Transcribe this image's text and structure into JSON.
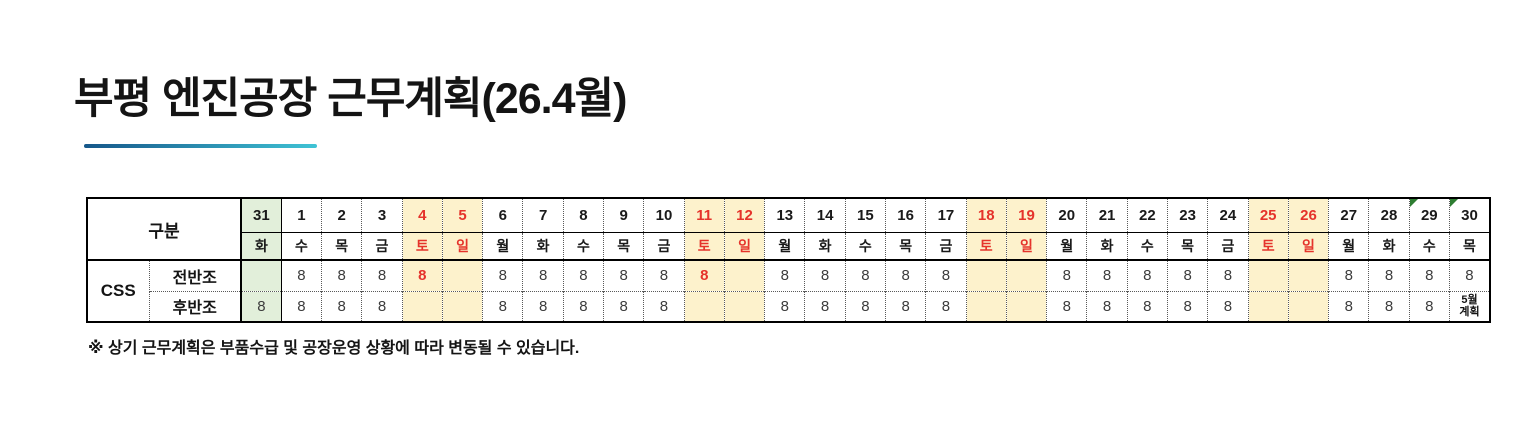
{
  "page": {
    "title": "부평 엔진공장 근무계획(26.4월)",
    "footnote": "※ 상기 근무계획은 부품수급 및 공장운영 상황에 따라 변동될 수 있습니다."
  },
  "colors": {
    "accent_gradient_start": "#16578a",
    "accent_gradient_end": "#3fc3d5",
    "green_bg": "#e2efda",
    "weekend_bg": "#fdf2cc",
    "red_text": "#e5332b",
    "flag_green": "#2e7d32"
  },
  "table": {
    "corner_label": "구분",
    "group_label": "CSS",
    "columns": [
      {
        "date": "31",
        "day": "화",
        "green": true
      },
      {
        "date": "1",
        "day": "수"
      },
      {
        "date": "2",
        "day": "목"
      },
      {
        "date": "3",
        "day": "금"
      },
      {
        "date": "4",
        "day": "토",
        "weekend": true
      },
      {
        "date": "5",
        "day": "일",
        "weekend": true
      },
      {
        "date": "6",
        "day": "월"
      },
      {
        "date": "7",
        "day": "화"
      },
      {
        "date": "8",
        "day": "수"
      },
      {
        "date": "9",
        "day": "목"
      },
      {
        "date": "10",
        "day": "금"
      },
      {
        "date": "11",
        "day": "토",
        "weekend": true
      },
      {
        "date": "12",
        "day": "일",
        "weekend": true
      },
      {
        "date": "13",
        "day": "월"
      },
      {
        "date": "14",
        "day": "화"
      },
      {
        "date": "15",
        "day": "수"
      },
      {
        "date": "16",
        "day": "목"
      },
      {
        "date": "17",
        "day": "금"
      },
      {
        "date": "18",
        "day": "토",
        "weekend": true
      },
      {
        "date": "19",
        "day": "일",
        "weekend": true
      },
      {
        "date": "20",
        "day": "월"
      },
      {
        "date": "21",
        "day": "화"
      },
      {
        "date": "22",
        "day": "수"
      },
      {
        "date": "23",
        "day": "목"
      },
      {
        "date": "24",
        "day": "금"
      },
      {
        "date": "25",
        "day": "토",
        "weekend": true
      },
      {
        "date": "26",
        "day": "일",
        "weekend": true
      },
      {
        "date": "27",
        "day": "월"
      },
      {
        "date": "28",
        "day": "화"
      },
      {
        "date": "29",
        "day": "수",
        "flag": true
      },
      {
        "date": "30",
        "day": "목",
        "flag": true
      }
    ],
    "shift_rows": [
      {
        "label": "전반조",
        "values": [
          "",
          "8",
          "8",
          "8",
          {
            "v": "8",
            "red": true
          },
          "",
          "8",
          "8",
          "8",
          "8",
          "8",
          {
            "v": "8",
            "red": true
          },
          "",
          "8",
          "8",
          "8",
          "8",
          "8",
          "",
          "",
          "8",
          "8",
          "8",
          "8",
          "8",
          "",
          "",
          "8",
          "8",
          "8",
          "8"
        ]
      },
      {
        "label": "후반조",
        "values": [
          "8",
          "8",
          "8",
          "8",
          "",
          "",
          "8",
          "8",
          "8",
          "8",
          "8",
          "",
          "",
          "8",
          "8",
          "8",
          "8",
          "8",
          "",
          "",
          "8",
          "8",
          "8",
          "8",
          "8",
          "",
          "",
          "8",
          "8",
          "8",
          {
            "v": "5월\n계획",
            "small": true
          }
        ]
      }
    ]
  }
}
